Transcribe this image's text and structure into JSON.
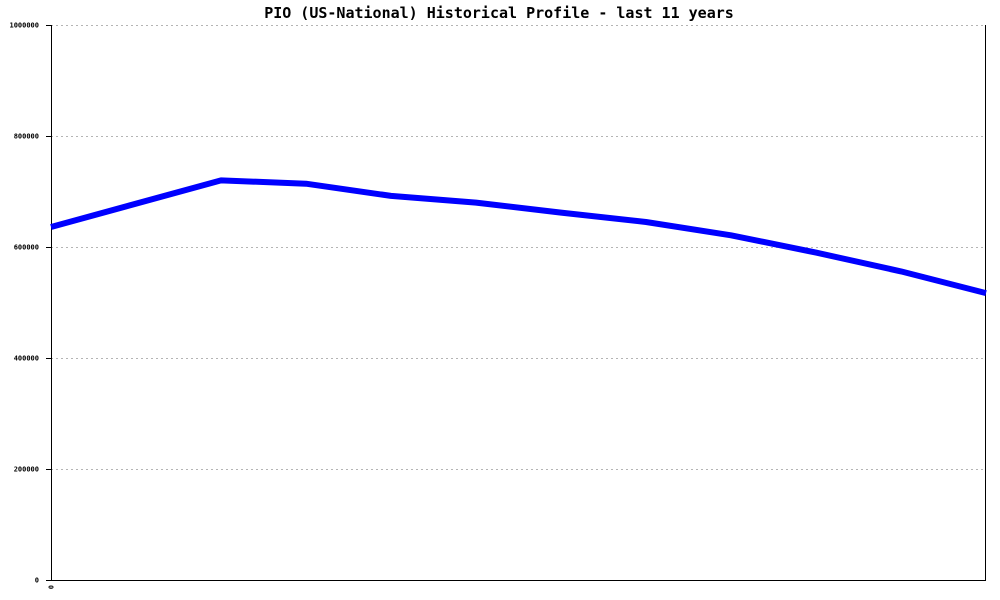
{
  "chart_data": {
    "type": "line",
    "title": "PIO (US-National) Historical Profile - last 11 years",
    "xlabel": "",
    "ylabel": "",
    "x_tick_labels": [
      "0"
    ],
    "y_tick_labels": [
      "0",
      "200000",
      "400000",
      "600000",
      "800000",
      "1000000"
    ],
    "ylim": [
      0,
      1000000
    ],
    "xlim": [
      0,
      11
    ],
    "grid": true,
    "legend": "none",
    "x": [
      0,
      2,
      3,
      4,
      5,
      6,
      7,
      8,
      9,
      10,
      11
    ],
    "series": [
      {
        "color": "#0000ff",
        "values": [
          636000,
          720000,
          714000,
          692000,
          680000,
          662000,
          645000,
          621000,
          590000,
          556000,
          517000
        ]
      }
    ]
  }
}
